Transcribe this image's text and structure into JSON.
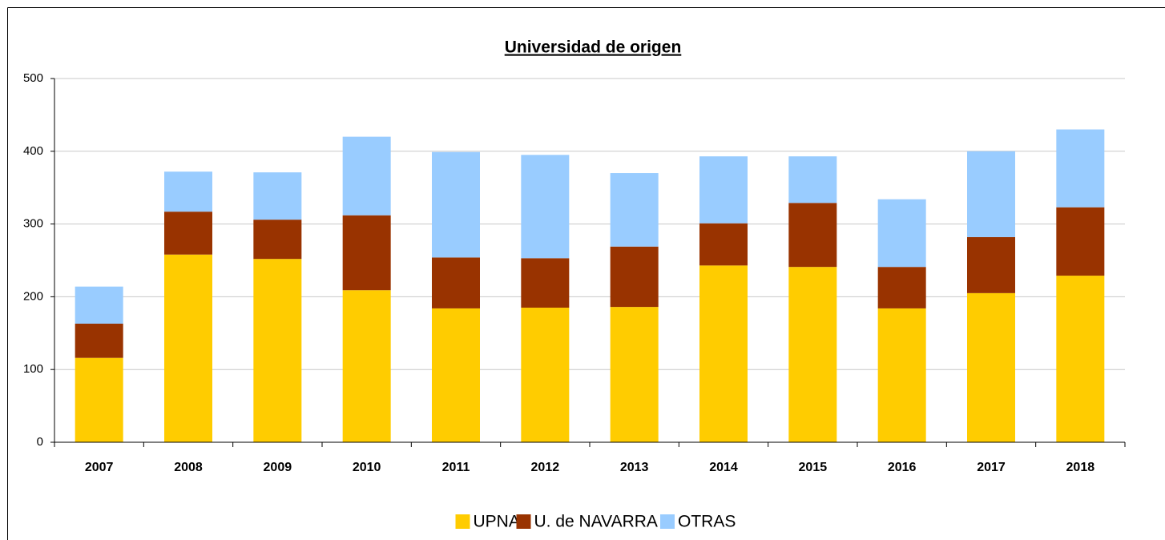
{
  "chart_data": {
    "type": "stacked_bar",
    "title": "Universidad de origen",
    "categories": [
      "2007",
      "2008",
      "2009",
      "2010",
      "2011",
      "2012",
      "2013",
      "2014",
      "2015",
      "2016",
      "2017",
      "2018"
    ],
    "series": [
      {
        "name": "UPNA",
        "color": "#ffcc00",
        "values": [
          116,
          258,
          252,
          209,
          184,
          185,
          186,
          243,
          241,
          184,
          205,
          229
        ]
      },
      {
        "name": "U. de NAVARRA",
        "color": "#993300",
        "values": [
          47,
          59,
          54,
          103,
          70,
          68,
          83,
          58,
          88,
          57,
          77,
          94
        ]
      },
      {
        "name": "OTRAS",
        "color": "#99ccff",
        "values": [
          51,
          55,
          65,
          108,
          145,
          142,
          101,
          92,
          64,
          93,
          118,
          107
        ]
      }
    ],
    "ylim": [
      0,
      500
    ],
    "yticks": [
      0,
      100,
      200,
      300,
      400,
      500
    ],
    "grid": true,
    "legend": "bottom"
  }
}
